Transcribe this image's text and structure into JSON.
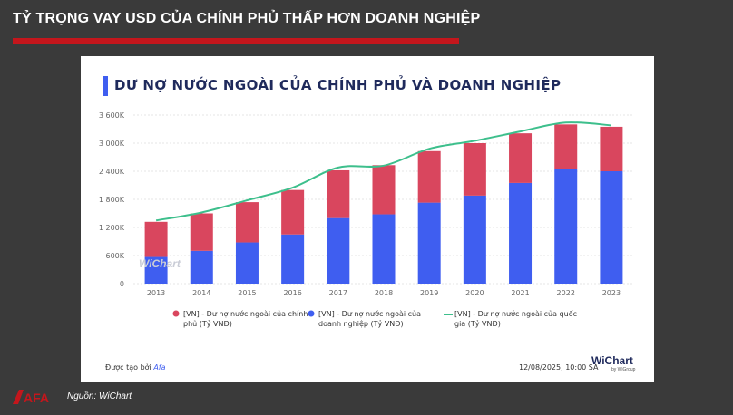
{
  "header": {
    "title": "TỶ TRỌNG VAY USD CỦA CHÍNH PHỦ THẤP HƠN DOANH NGHIỆP"
  },
  "card": {
    "title": "DƯ NỢ NƯỚC NGOÀI CỦA CHÍNH PHỦ VÀ DOANH NGHIỆP",
    "credit_prefix": "Được tạo bởi",
    "credit_brand": "Afa",
    "timestamp": "12/08/2025, 10:00 SA",
    "logo": "WiChart",
    "logo_sub": "by WiGroup",
    "watermark": "WiChart"
  },
  "footer": {
    "source": "Nguồn: WiChart",
    "logo_text": "AFA"
  },
  "colors": {
    "government": "#d9465e",
    "enterprise": "#3f5ef0",
    "national": "#3dbf8c",
    "accent_red": "#c4161c"
  },
  "chart_data": {
    "type": "bar",
    "stacked": true,
    "categories": [
      "2013",
      "2014",
      "2015",
      "2016",
      "2017",
      "2018",
      "2019",
      "2020",
      "2021",
      "2022",
      "2023"
    ],
    "y_ticks": [
      "0",
      "600K",
      "1 200K",
      "1 800K",
      "2 400K",
      "3 000K",
      "3 600K"
    ],
    "ylim": [
      0,
      3600000
    ],
    "grid": true,
    "legend_position": "bottom",
    "series": [
      {
        "name": "[VN] - Dư nợ nước ngoài của doanh nghiệp (Tỷ VNĐ)",
        "kind": "bar",
        "values": [
          570000,
          700000,
          880000,
          1050000,
          1400000,
          1480000,
          1730000,
          1880000,
          2150000,
          2450000,
          2400000
        ]
      },
      {
        "name": "[VN] - Dư nợ nước ngoài của chính phủ (Tỷ VNĐ)",
        "kind": "bar",
        "values": [
          750000,
          800000,
          860000,
          950000,
          1020000,
          1050000,
          1100000,
          1120000,
          1060000,
          950000,
          950000
        ]
      },
      {
        "name": "[VN] - Dư nợ nước ngoài của quốc gia (Tỷ VNĐ)",
        "kind": "line",
        "values": [
          1350000,
          1520000,
          1780000,
          2050000,
          2480000,
          2520000,
          2880000,
          3050000,
          3250000,
          3440000,
          3380000
        ]
      }
    ]
  }
}
